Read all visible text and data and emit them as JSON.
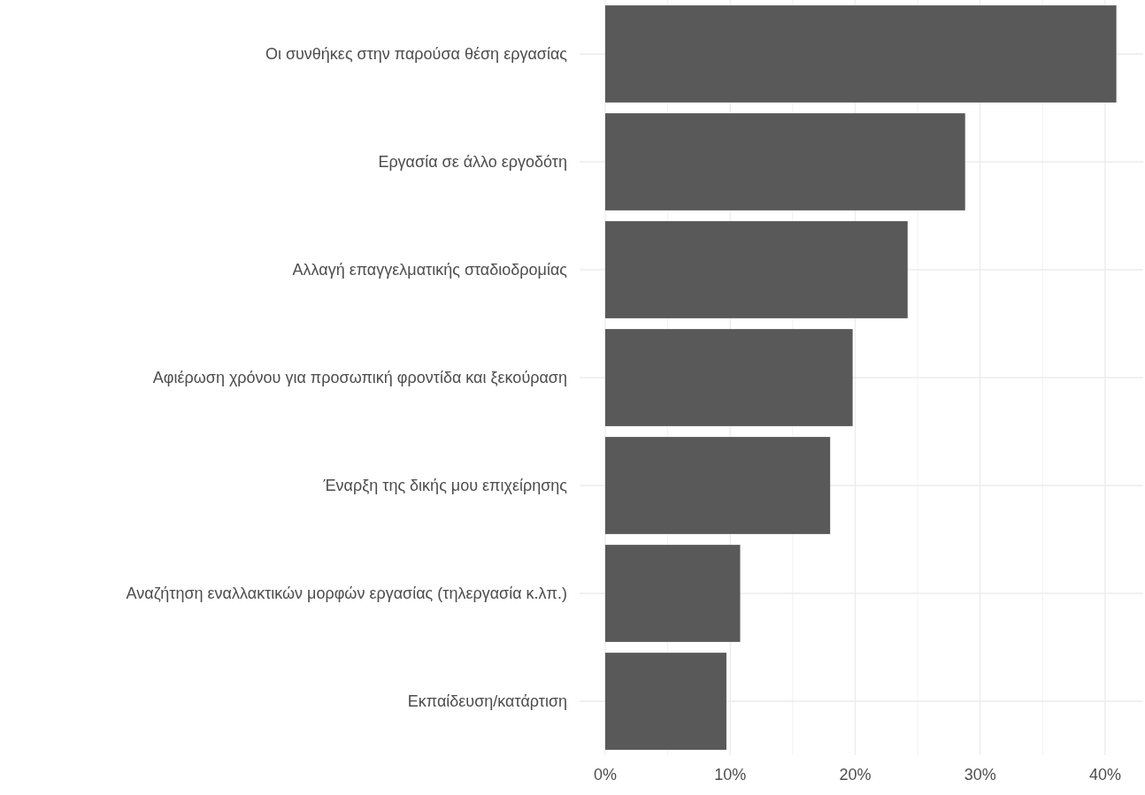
{
  "chart_data": {
    "type": "bar",
    "orientation": "horizontal",
    "categories": [
      "Οι συνθήκες στην παρούσα θέση εργασίας",
      "Εργασία σε άλλο εργοδότη",
      "Αλλαγή επαγγελματικής σταδιοδρομίας",
      "Αφιέρωση χρόνου για προσωπική φροντίδα και ξεκούραση",
      "Έναρξη της δικής μου επιχείρησης",
      "Αναζήτηση εναλλακτικών μορφών εργασίας (τηλεργασία κ.λπ.)",
      "Εκπαίδευση/κατάρτιση"
    ],
    "values": [
      40.9,
      28.8,
      24.2,
      19.8,
      18.0,
      10.8,
      9.7
    ],
    "color": "#595959",
    "xlim": [
      -2.05,
      43.05
    ],
    "xticks": [
      {
        "value": 0,
        "label": "0%"
      },
      {
        "value": 5,
        "label": null
      },
      {
        "value": 10,
        "label": "10%"
      },
      {
        "value": 15,
        "label": null
      },
      {
        "value": 20,
        "label": "20%"
      },
      {
        "value": 25,
        "label": null
      },
      {
        "value": 30,
        "label": "30%"
      },
      {
        "value": 35,
        "label": null
      },
      {
        "value": 40,
        "label": "40%"
      }
    ],
    "grid": true
  }
}
